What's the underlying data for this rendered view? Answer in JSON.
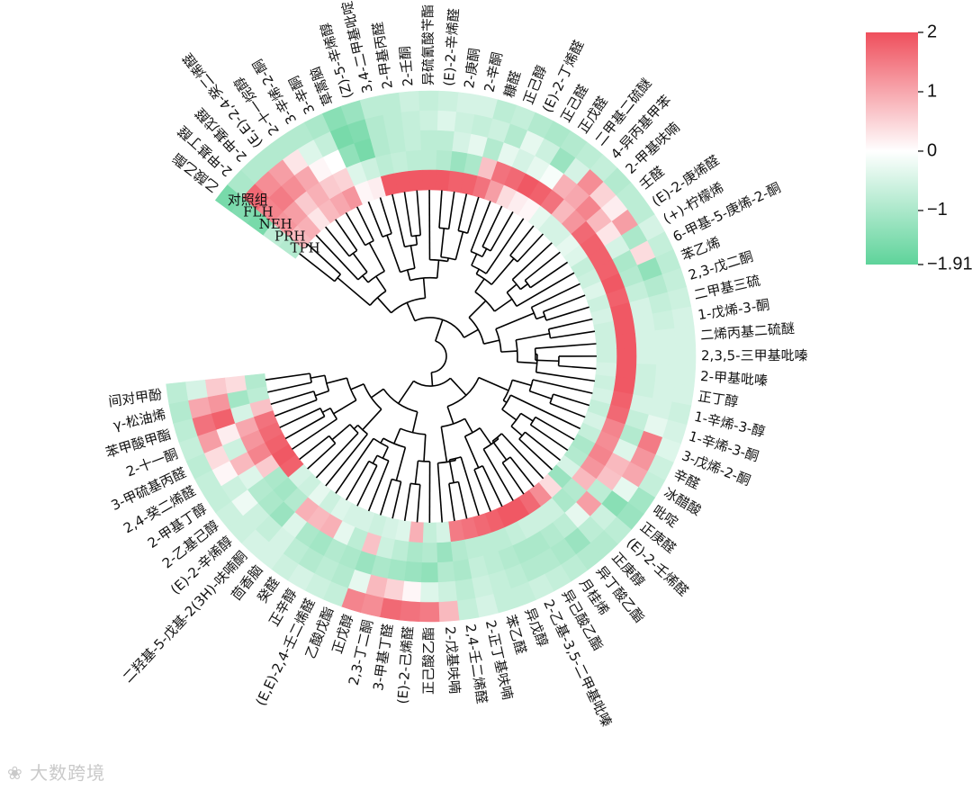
{
  "chart_data": {
    "type": "heatmap",
    "layout": "circular",
    "groups": [
      "对照组",
      "FLH",
      "NEH",
      "PRH",
      "TPH"
    ],
    "labels": [
      "乙酸乙酯",
      "2-甲基丁醛",
      "2-甲基戊醛",
      "(E,E)-2,4-癸二烯醛",
      "2-十一烷醇",
      "3-辛烯-2-酮",
      "3-辛酮",
      "草蒿脑",
      "(Z)-5-辛烯醇",
      "3,4-二甲基吡啶",
      "2-甲基丙醛",
      "2-壬酮",
      "异硫氰酸苄酯",
      "(E)-2-辛烯醛",
      "2-庚酮",
      "2-辛酮",
      "糠醛",
      "正己醇",
      "(E)-2-丁烯醛",
      "正己醛",
      "正戊醛",
      "二甲基二硫醚",
      "4-异丙基甲苯",
      "2-甲基呋喃",
      "壬醛",
      "(E)-2-庚烯醛",
      "(+)-柠檬烯",
      "6-甲基-5-庚烯-2-酮",
      "苯乙烯",
      "2,3-戊二酮",
      "二甲基三硫",
      "1-戊烯-3-酮",
      "二烯丙基二硫醚",
      "2,3,5-三甲基吡嗪",
      "2-甲基吡嗪",
      "正丁醇",
      "1-辛烯-3-醇",
      "1-辛烯-3-酮",
      "3-戊烯-2-酮",
      "辛醛",
      "冰醋酸",
      "吡啶",
      "正庚醛",
      "(E)-2-壬烯醛",
      "正庚醇",
      "异丁酸乙酯",
      "月桂烯",
      "异己酸乙酯",
      "2-乙基-3,5-二甲基吡嗪",
      "异戊醇",
      "苯乙醛",
      "2-正丁基呋喃",
      "2,4-壬二烯醛",
      "2-戊基呋喃",
      "正己酸乙酯",
      "(E)-2-己烯醛",
      "3-甲基丁醛",
      "2,3-丁二酮",
      "正戊醇",
      "乙酸戊酯",
      "(E,E)-2,4-壬二烯醛",
      "正辛醇",
      "癸醛",
      "茴香脑",
      "二羟基-5-戊基-2(3H)-呋喃酮",
      "(E)-2-辛烯醇",
      "2-乙基己醇",
      "2-甲基丁醇",
      "2,4-癸二烯醛",
      "3-甲硫基丙醛",
      "2-十一酮",
      "苯甲酸甲酯",
      "γ-松油烯",
      "间对甲酚"
    ],
    "values": [
      [
        -1.6,
        -1.5,
        -1.6,
        -0.8,
        -0.9
      ],
      [
        -1.0,
        1.7,
        1.4,
        1.2,
        0.8
      ],
      [
        -0.9,
        1.3,
        1.5,
        1.1,
        0.9
      ],
      [
        -0.9,
        1.1,
        1.3,
        0.6,
        0.3
      ],
      [
        -0.9,
        0.3,
        1.0,
        0.9,
        0.8
      ],
      [
        -0.9,
        -0.4,
        0.1,
        0.6,
        1.0
      ],
      [
        -1.0,
        -0.7,
        0.0,
        0.5,
        1.2
      ],
      [
        -1.4,
        -1.6,
        -1.3,
        -0.4,
        0.1
      ],
      [
        -1.2,
        -1.5,
        -1.6,
        -0.6,
        0.2
      ],
      [
        -0.8,
        -0.9,
        -0.9,
        -0.8,
        1.9
      ],
      [
        -0.8,
        -0.8,
        -0.8,
        -0.7,
        1.9
      ],
      [
        -0.6,
        -0.7,
        -0.7,
        -0.8,
        1.9
      ],
      [
        -0.7,
        -0.6,
        -0.8,
        -0.8,
        1.9
      ],
      [
        -0.6,
        -0.4,
        -0.8,
        -0.9,
        1.9
      ],
      [
        -0.5,
        -0.6,
        -0.5,
        -1.2,
        1.8
      ],
      [
        -0.5,
        -0.7,
        -0.3,
        -1.0,
        1.8
      ],
      [
        -0.8,
        -0.6,
        -0.9,
        0.7,
        1.6
      ],
      [
        -0.7,
        -0.9,
        -0.3,
        1.6,
        1.1
      ],
      [
        -0.9,
        -0.3,
        -0.5,
        1.7,
        0.4
      ],
      [
        -1.0,
        -0.6,
        -0.3,
        1.9,
        0.2
      ],
      [
        -0.9,
        -1.2,
        -0.1,
        1.8,
        0.1
      ],
      [
        -0.8,
        -0.5,
        0.9,
        1.6,
        -0.3
      ],
      [
        -0.7,
        1.3,
        1.0,
        0.8,
        -0.5
      ],
      [
        -0.9,
        0.5,
        1.4,
        1.2,
        -0.5
      ],
      [
        -0.8,
        0.2,
        0.8,
        1.7,
        -0.3
      ],
      [
        -0.8,
        1.1,
        0.3,
        1.8,
        -0.4
      ],
      [
        -0.5,
        -1.0,
        -0.5,
        1.8,
        -0.7
      ],
      [
        -0.7,
        0.4,
        -1.0,
        1.8,
        -0.6
      ],
      [
        -0.8,
        -1.3,
        -0.9,
        1.9,
        -0.4
      ],
      [
        -0.7,
        -0.9,
        -0.7,
        1.8,
        -0.6
      ],
      [
        -0.6,
        -0.7,
        -0.5,
        1.9,
        -0.5
      ],
      [
        -0.5,
        -0.6,
        -0.5,
        1.9,
        -0.6
      ],
      [
        -0.5,
        -0.5,
        -0.5,
        1.9,
        -0.6
      ],
      [
        -0.5,
        -0.5,
        -0.5,
        1.9,
        -0.6
      ],
      [
        -0.5,
        -0.5,
        -0.6,
        1.9,
        -0.5
      ],
      [
        -0.5,
        -0.5,
        -0.6,
        1.9,
        -0.6
      ],
      [
        -0.6,
        -0.5,
        -0.5,
        1.8,
        -0.5
      ],
      [
        -0.5,
        -0.3,
        -0.7,
        1.7,
        -0.7
      ],
      [
        -0.4,
        1.5,
        -0.9,
        1.4,
        -0.5
      ],
      [
        -0.6,
        1.2,
        -0.4,
        1.3,
        -0.7
      ],
      [
        -0.7,
        1.0,
        0.8,
        1.4,
        -1.0
      ],
      [
        -1.1,
        -0.3,
        0.7,
        1.2,
        -0.9
      ],
      [
        -1.2,
        -1.4,
        -0.8,
        0.8,
        -0.5
      ],
      [
        -0.8,
        -0.6,
        1.1,
        -0.9,
        -1.2
      ],
      [
        -0.9,
        -0.8,
        -0.3,
        -1.0,
        0.4
      ],
      [
        -0.9,
        -1.2,
        -0.8,
        -0.6,
        1.3
      ],
      [
        -0.8,
        -1.0,
        -0.9,
        -0.6,
        1.7
      ],
      [
        -0.7,
        -0.9,
        -1.0,
        -0.6,
        1.9
      ],
      [
        -0.6,
        -0.9,
        -1.0,
        -0.7,
        1.9
      ],
      [
        -0.7,
        -0.8,
        -0.9,
        -0.8,
        1.8
      ],
      [
        -0.7,
        -0.7,
        -0.8,
        -0.8,
        1.7
      ],
      [
        -0.5,
        -0.6,
        -0.7,
        -0.8,
        1.6
      ],
      [
        -0.7,
        -0.8,
        -1.0,
        -0.9,
        1.5
      ],
      [
        0.8,
        -0.6,
        -0.9,
        -1.2,
        -0.5
      ],
      [
        1.5,
        -0.4,
        -1.3,
        -0.9,
        -0.7
      ],
      [
        1.6,
        0.1,
        -1.2,
        -1.0,
        0.9
      ],
      [
        1.7,
        0.5,
        -1.1,
        -0.8,
        -0.4
      ],
      [
        1.3,
        0.8,
        -1.0,
        -0.6,
        -0.5
      ],
      [
        1.4,
        -0.3,
        -1.2,
        0.7,
        -0.6
      ],
      [
        -0.7,
        -0.9,
        -1.0,
        -0.8,
        -0.5
      ],
      [
        -0.6,
        -0.8,
        -0.9,
        -0.3,
        -0.5
      ],
      [
        -0.5,
        -0.9,
        -1.1,
        0.9,
        -0.4
      ],
      [
        -0.6,
        -0.8,
        -1.0,
        0.8,
        -0.6
      ],
      [
        -0.5,
        -0.5,
        -0.4,
        0.9,
        -0.3
      ],
      [
        -0.5,
        -0.7,
        -1.2,
        -0.9,
        -0.6
      ],
      [
        -0.6,
        -0.6,
        -1.0,
        -1.1,
        -0.5
      ],
      [
        -0.6,
        -0.2,
        -0.9,
        -1.0,
        1.8
      ],
      [
        -0.7,
        -0.6,
        -0.4,
        0.6,
        1.9
      ],
      [
        -0.7,
        0.1,
        0.8,
        1.4,
        1.8
      ],
      [
        -0.8,
        0.4,
        -0.6,
        1.2,
        1.7
      ],
      [
        -0.7,
        1.1,
        0.2,
        1.0,
        1.6
      ],
      [
        -0.8,
        1.6,
        1.8,
        -0.5,
        0.7
      ],
      [
        -0.9,
        1.0,
        1.2,
        -1.1,
        -0.8
      ],
      [
        -0.8,
        -0.5,
        0.6,
        0.4,
        -0.9
      ]
    ],
    "colorbar": {
      "min": -1.91,
      "max": 2,
      "ticks": [
        2,
        1,
        0,
        -1,
        -1.91
      ],
      "tick_labels": [
        "2",
        "1",
        "0",
        "−1",
        "−1.91"
      ],
      "colors": {
        "low": "#5ed39a",
        "mid": "#ffffff",
        "high": "#ef4f5c"
      }
    }
  },
  "watermark": {
    "text": "大数跨境"
  }
}
